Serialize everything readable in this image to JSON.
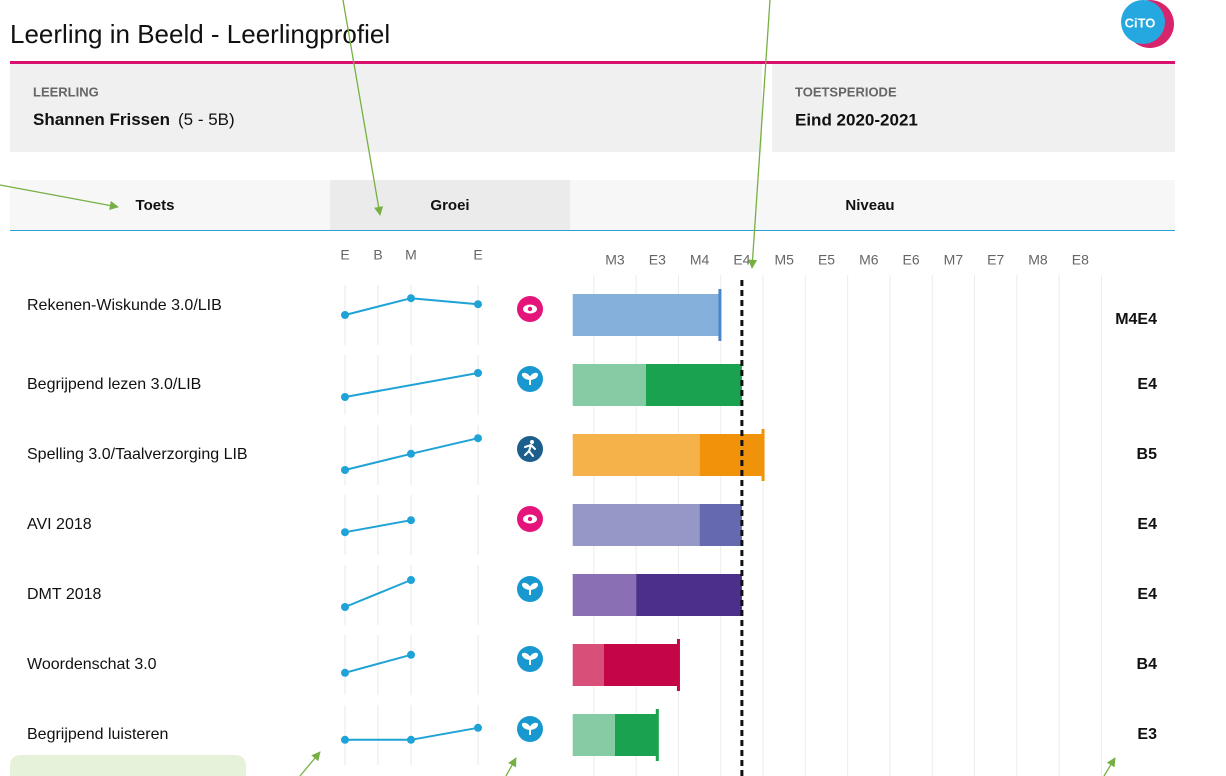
{
  "header": {
    "title": "Leerling in Beeld - Leerlingprofiel",
    "logo": "CiTO",
    "student_label": "LEERLING",
    "student_name": "Shannen Frissen",
    "student_group": "(5 - 5B)",
    "period_label": "TOETSPERIODE",
    "period": "Eind 2020-2021"
  },
  "columns": {
    "test": "Toets",
    "growth": "Groei",
    "level": "Niveau"
  },
  "growth_scale": [
    "E",
    "B",
    "M",
    "E"
  ],
  "level_scale": [
    "M3",
    "E3",
    "M4",
    "E4",
    "M5",
    "E5",
    "M6",
    "E6",
    "M7",
    "E7",
    "M8",
    "E8"
  ],
  "reference_level": 3,
  "rows": [
    {
      "test": "Rekenen-Wiskunde 3.0/LIB",
      "result": "M4E4",
      "icon": "eye",
      "icon_color": "#e5147b",
      "growth": [
        {
          "col": 0,
          "value": 0.5
        },
        {
          "col": 2,
          "value": 0.78
        },
        {
          "col": 3,
          "value": 0.68
        }
      ],
      "bar": {
        "light": 2.48,
        "dark": null,
        "marker": true
      },
      "bar_colors": {
        "light": "#85b0dc",
        "dark": "#4a86c8"
      }
    },
    {
      "test": "Begrijpend lezen 3.0/LIB",
      "result": "E4",
      "icon": "sprout",
      "icon_color": "#1898cf",
      "growth": [
        {
          "col": 0,
          "value": 0.3
        },
        {
          "col": 3,
          "value": 0.7
        }
      ],
      "bar": {
        "light": 0.73,
        "dark": 3,
        "marker": false
      },
      "bar_colors": {
        "light": "#85cca5",
        "dark": "#1aa251"
      }
    },
    {
      "test": "Spelling 3.0/Taalverzorging LIB",
      "result": "B5",
      "icon": "run",
      "icon_color": "#1c5f8c",
      "growth": [
        {
          "col": 0,
          "value": 0.25
        },
        {
          "col": 2,
          "value": 0.52
        },
        {
          "col": 3,
          "value": 0.78
        }
      ],
      "bar": {
        "light": 2,
        "dark": 3.5,
        "marker": true
      },
      "bar_colors": {
        "light": "#f5b24a",
        "dark": "#f0930a"
      }
    },
    {
      "test": "AVI 2018",
      "result": "E4",
      "icon": "eye",
      "icon_color": "#e5147b",
      "growth": [
        {
          "col": 0,
          "value": 0.38
        },
        {
          "col": 2,
          "value": 0.58
        }
      ],
      "bar": {
        "light": 2,
        "dark": 3,
        "marker": false
      },
      "bar_colors": {
        "light": "#9597c7",
        "dark": "#6569b0"
      }
    },
    {
      "test": "DMT 2018",
      "result": "E4",
      "icon": "sprout",
      "icon_color": "#1898cf",
      "growth": [
        {
          "col": 0,
          "value": 0.3
        },
        {
          "col": 2,
          "value": 0.75
        }
      ],
      "bar": {
        "light": 0.5,
        "dark": 3,
        "marker": false
      },
      "bar_colors": {
        "light": "#8a6fb5",
        "dark": "#4b2f8a"
      }
    },
    {
      "test": "Woordenschat 3.0",
      "result": "B4",
      "icon": "sprout",
      "icon_color": "#1898cf",
      "growth": [
        {
          "col": 0,
          "value": 0.37
        },
        {
          "col": 2,
          "value": 0.67
        }
      ],
      "bar": {
        "light": -0.26,
        "dark": 1.5,
        "marker": true
      },
      "bar_colors": {
        "light": "#d84f7a",
        "dark": "#c40648"
      }
    },
    {
      "test": "Begrijpend luisteren",
      "result": "E3",
      "icon": "sprout",
      "icon_color": "#1898cf",
      "growth": [
        {
          "col": 0,
          "value": 0.42
        },
        {
          "col": 2,
          "value": 0.42
        },
        {
          "col": 3,
          "value": 0.62
        }
      ],
      "bar": {
        "light": 0,
        "dark": 1,
        "marker": true
      },
      "bar_colors": {
        "light": "#85cca5",
        "dark": "#1aa251"
      }
    }
  ]
}
